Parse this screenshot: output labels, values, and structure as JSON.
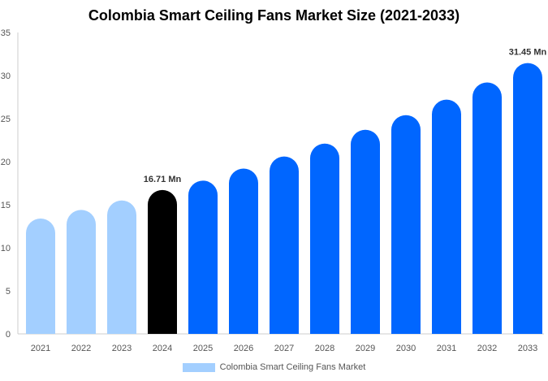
{
  "chart_data": {
    "type": "bar",
    "title": "Colombia Smart Ceiling Fans Market Size (2021-2033)",
    "categories": [
      "2021",
      "2022",
      "2023",
      "2024",
      "2025",
      "2026",
      "2027",
      "2028",
      "2029",
      "2030",
      "2031",
      "2032",
      "2033"
    ],
    "series": [
      {
        "name": "Colombia Smart Ceiling Fans Market",
        "values": [
          13.4,
          14.4,
          15.5,
          16.71,
          17.8,
          19.2,
          20.6,
          22.1,
          23.7,
          25.4,
          27.2,
          29.2,
          31.45
        ]
      }
    ],
    "data_labels": {
      "3": "16.71 Mn",
      "12": "31.45 Mn"
    },
    "ylim": [
      0,
      35
    ],
    "yticks": [
      0,
      5,
      10,
      15,
      20,
      25,
      30,
      35
    ],
    "xlabel": "",
    "ylabel": "",
    "grid": false,
    "legend": "bottom",
    "colors": {
      "historical": "#a3cfff",
      "current": "#000000",
      "forecast": "#0066ff"
    }
  }
}
